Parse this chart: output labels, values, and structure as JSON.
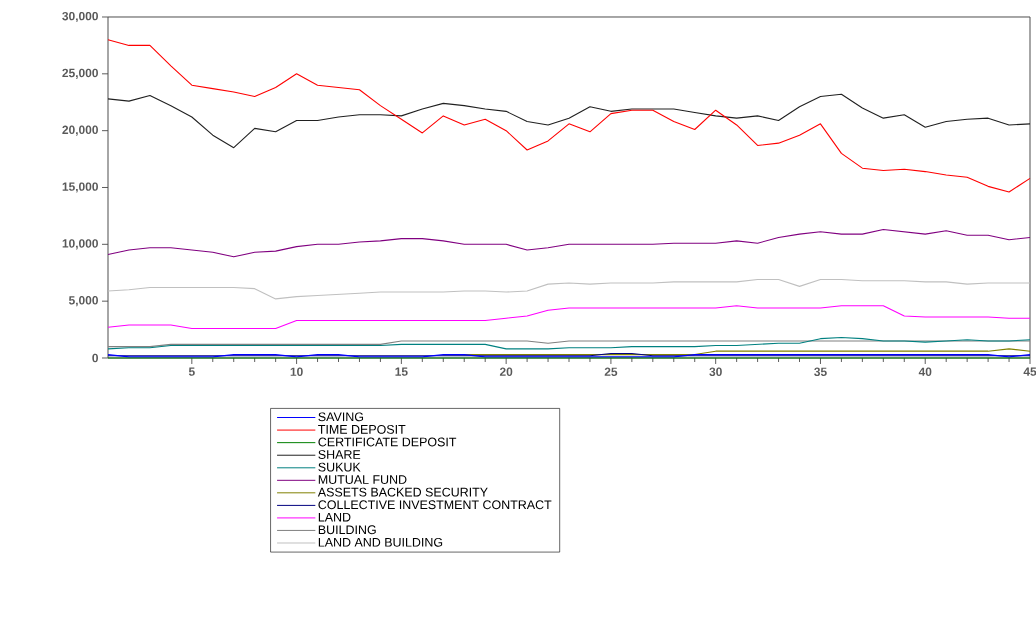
{
  "chart_data": {
    "type": "line",
    "x": [
      1,
      2,
      3,
      4,
      5,
      6,
      7,
      8,
      9,
      10,
      11,
      12,
      13,
      14,
      15,
      16,
      17,
      18,
      19,
      20,
      21,
      22,
      23,
      24,
      25,
      26,
      27,
      28,
      29,
      30,
      31,
      32,
      33,
      34,
      35,
      36,
      37,
      38,
      39,
      40,
      41,
      42,
      43,
      44,
      45
    ],
    "xlim": [
      1,
      45
    ],
    "xticks": [
      5,
      10,
      15,
      20,
      25,
      30,
      35,
      40,
      45
    ],
    "ylim": [
      0,
      30000
    ],
    "yticks": [
      {
        "value": 0,
        "label": "0"
      },
      {
        "value": 5000,
        "label": "5,000"
      },
      {
        "value": 10000,
        "label": "10,000"
      },
      {
        "value": 15000,
        "label": "15,000"
      },
      {
        "value": 20000,
        "label": "20,000"
      },
      {
        "value": 25000,
        "label": "25,000"
      },
      {
        "value": 30000,
        "label": "30,000"
      }
    ],
    "grid": false,
    "legend": "bottom",
    "series": [
      {
        "name": "SAVING",
        "color": "#0000ff",
        "values": [
          300,
          100,
          100,
          100,
          100,
          100,
          300,
          300,
          300,
          100,
          300,
          300,
          100,
          100,
          100,
          100,
          300,
          300,
          100,
          100,
          100,
          100,
          100,
          100,
          100,
          100,
          100,
          100,
          300,
          300,
          300,
          300,
          300,
          300,
          300,
          300,
          300,
          300,
          300,
          300,
          300,
          300,
          300,
          100,
          300
        ]
      },
      {
        "name": "TIME DEPOSIT",
        "color": "#ff0000",
        "values": [
          28000,
          27500,
          27500,
          25700,
          24000,
          23700,
          23400,
          23000,
          23800,
          25000,
          24000,
          23800,
          23600,
          22200,
          21000,
          19800,
          21300,
          20500,
          21000,
          20000,
          18300,
          19100,
          20600,
          19900,
          21500,
          21800,
          21800,
          20800,
          20100,
          21800,
          20500,
          18700,
          18900,
          19600,
          20600,
          18000,
          16700,
          16500,
          16600,
          16400,
          16100,
          15900,
          15100,
          14600,
          15800
        ]
      },
      {
        "name": "CERTIFICATE DEPOSIT",
        "color": "#008000",
        "values": [
          0,
          0,
          0,
          0,
          0,
          0,
          0,
          0,
          0,
          0,
          0,
          0,
          0,
          0,
          0,
          0,
          0,
          0,
          0,
          0,
          0,
          0,
          0,
          0,
          0,
          0,
          0,
          0,
          0,
          0,
          0,
          0,
          0,
          0,
          0,
          0,
          0,
          0,
          0,
          0,
          0,
          0,
          0,
          0,
          0
        ]
      },
      {
        "name": "SHARE",
        "color": "#202020",
        "values": [
          22800,
          22600,
          23100,
          22200,
          21200,
          19600,
          18500,
          20200,
          19900,
          20900,
          20900,
          21200,
          21400,
          21400,
          21300,
          21900,
          22400,
          22200,
          21900,
          21700,
          20800,
          20500,
          21100,
          22100,
          21700,
          21900,
          21900,
          21900,
          21600,
          21300,
          21100,
          21300,
          20900,
          22100,
          23000,
          23200,
          22000,
          21100,
          21400,
          20300,
          20800,
          21000,
          21100,
          20500,
          20600
        ]
      },
      {
        "name": "SUKUK",
        "color": "#008080",
        "values": [
          800,
          900,
          900,
          1100,
          1100,
          1100,
          1100,
          1100,
          1100,
          1100,
          1100,
          1100,
          1100,
          1100,
          1200,
          1200,
          1200,
          1200,
          1200,
          800,
          800,
          800,
          900,
          900,
          900,
          1000,
          1000,
          1000,
          1000,
          1100,
          1100,
          1200,
          1300,
          1300,
          1700,
          1800,
          1700,
          1500,
          1500,
          1400,
          1500,
          1600,
          1500,
          1500,
          1600
        ]
      },
      {
        "name": "MUTUAL FUND",
        "color": "#800080",
        "values": [
          9100,
          9500,
          9700,
          9700,
          9500,
          9300,
          8900,
          9300,
          9400,
          9800,
          10000,
          10000,
          10200,
          10300,
          10500,
          10500,
          10300,
          10000,
          10000,
          10000,
          9500,
          9700,
          10000,
          10000,
          10000,
          10000,
          10000,
          10100,
          10100,
          10100,
          10300,
          10100,
          10600,
          10900,
          11100,
          10900,
          10900,
          11300,
          11100,
          10900,
          11200,
          10800,
          10800,
          10400,
          10600
        ]
      },
      {
        "name": "ASSETS  BACKED SECURITY",
        "color": "#808000",
        "values": [
          null,
          null,
          null,
          null,
          null,
          null,
          null,
          null,
          null,
          null,
          null,
          null,
          null,
          null,
          null,
          null,
          300,
          300,
          300,
          300,
          300,
          300,
          300,
          300,
          300,
          300,
          300,
          300,
          300,
          600,
          600,
          600,
          600,
          600,
          600,
          600,
          600,
          600,
          600,
          600,
          600,
          600,
          600,
          800,
          600
        ]
      },
      {
        "name": "COLLECTIVE INVESTMENT CONTRACT",
        "color": "#000080",
        "values": [
          200,
          200,
          200,
          200,
          200,
          200,
          200,
          200,
          200,
          200,
          200,
          200,
          200,
          200,
          200,
          200,
          200,
          200,
          200,
          200,
          200,
          200,
          200,
          200,
          400,
          400,
          200,
          200,
          200,
          200,
          200,
          200,
          200,
          200,
          200,
          200,
          200,
          200,
          200,
          200,
          200,
          200,
          200,
          200,
          200
        ]
      },
      {
        "name": "LAND",
        "color": "#ff00ff",
        "values": [
          2700,
          2900,
          2900,
          2900,
          2600,
          2600,
          2600,
          2600,
          2600,
          3300,
          3300,
          3300,
          3300,
          3300,
          3300,
          3300,
          3300,
          3300,
          3300,
          3500,
          3700,
          4200,
          4400,
          4400,
          4400,
          4400,
          4400,
          4400,
          4400,
          4400,
          4600,
          4400,
          4400,
          4400,
          4400,
          4600,
          4600,
          4600,
          3700,
          3600,
          3600,
          3600,
          3600,
          3500,
          3500
        ]
      },
      {
        "name": "BUILDING",
        "color": "#808080",
        "values": [
          1000,
          1000,
          1000,
          1200,
          1200,
          1200,
          1200,
          1200,
          1200,
          1200,
          1200,
          1200,
          1200,
          1200,
          1500,
          1500,
          1500,
          1500,
          1500,
          1500,
          1500,
          1300,
          1500,
          1500,
          1500,
          1500,
          1500,
          1500,
          1500,
          1500,
          1500,
          1500,
          1500,
          1500,
          1500,
          1500,
          1500,
          1500,
          1500,
          1500,
          1500,
          1500,
          1500,
          1500,
          1500
        ]
      },
      {
        "name": "LAND AND BUILDING",
        "color": "#c0c0c0",
        "values": [
          5900,
          6000,
          6200,
          6200,
          6200,
          6200,
          6200,
          6100,
          5200,
          5400,
          5500,
          5600,
          5700,
          5800,
          5800,
          5800,
          5800,
          5900,
          5900,
          5800,
          5900,
          6500,
          6600,
          6500,
          6600,
          6600,
          6600,
          6700,
          6700,
          6700,
          6700,
          6900,
          6900,
          6300,
          6900,
          6900,
          6800,
          6800,
          6800,
          6700,
          6700,
          6500,
          6600,
          6600,
          6600
        ]
      }
    ]
  }
}
